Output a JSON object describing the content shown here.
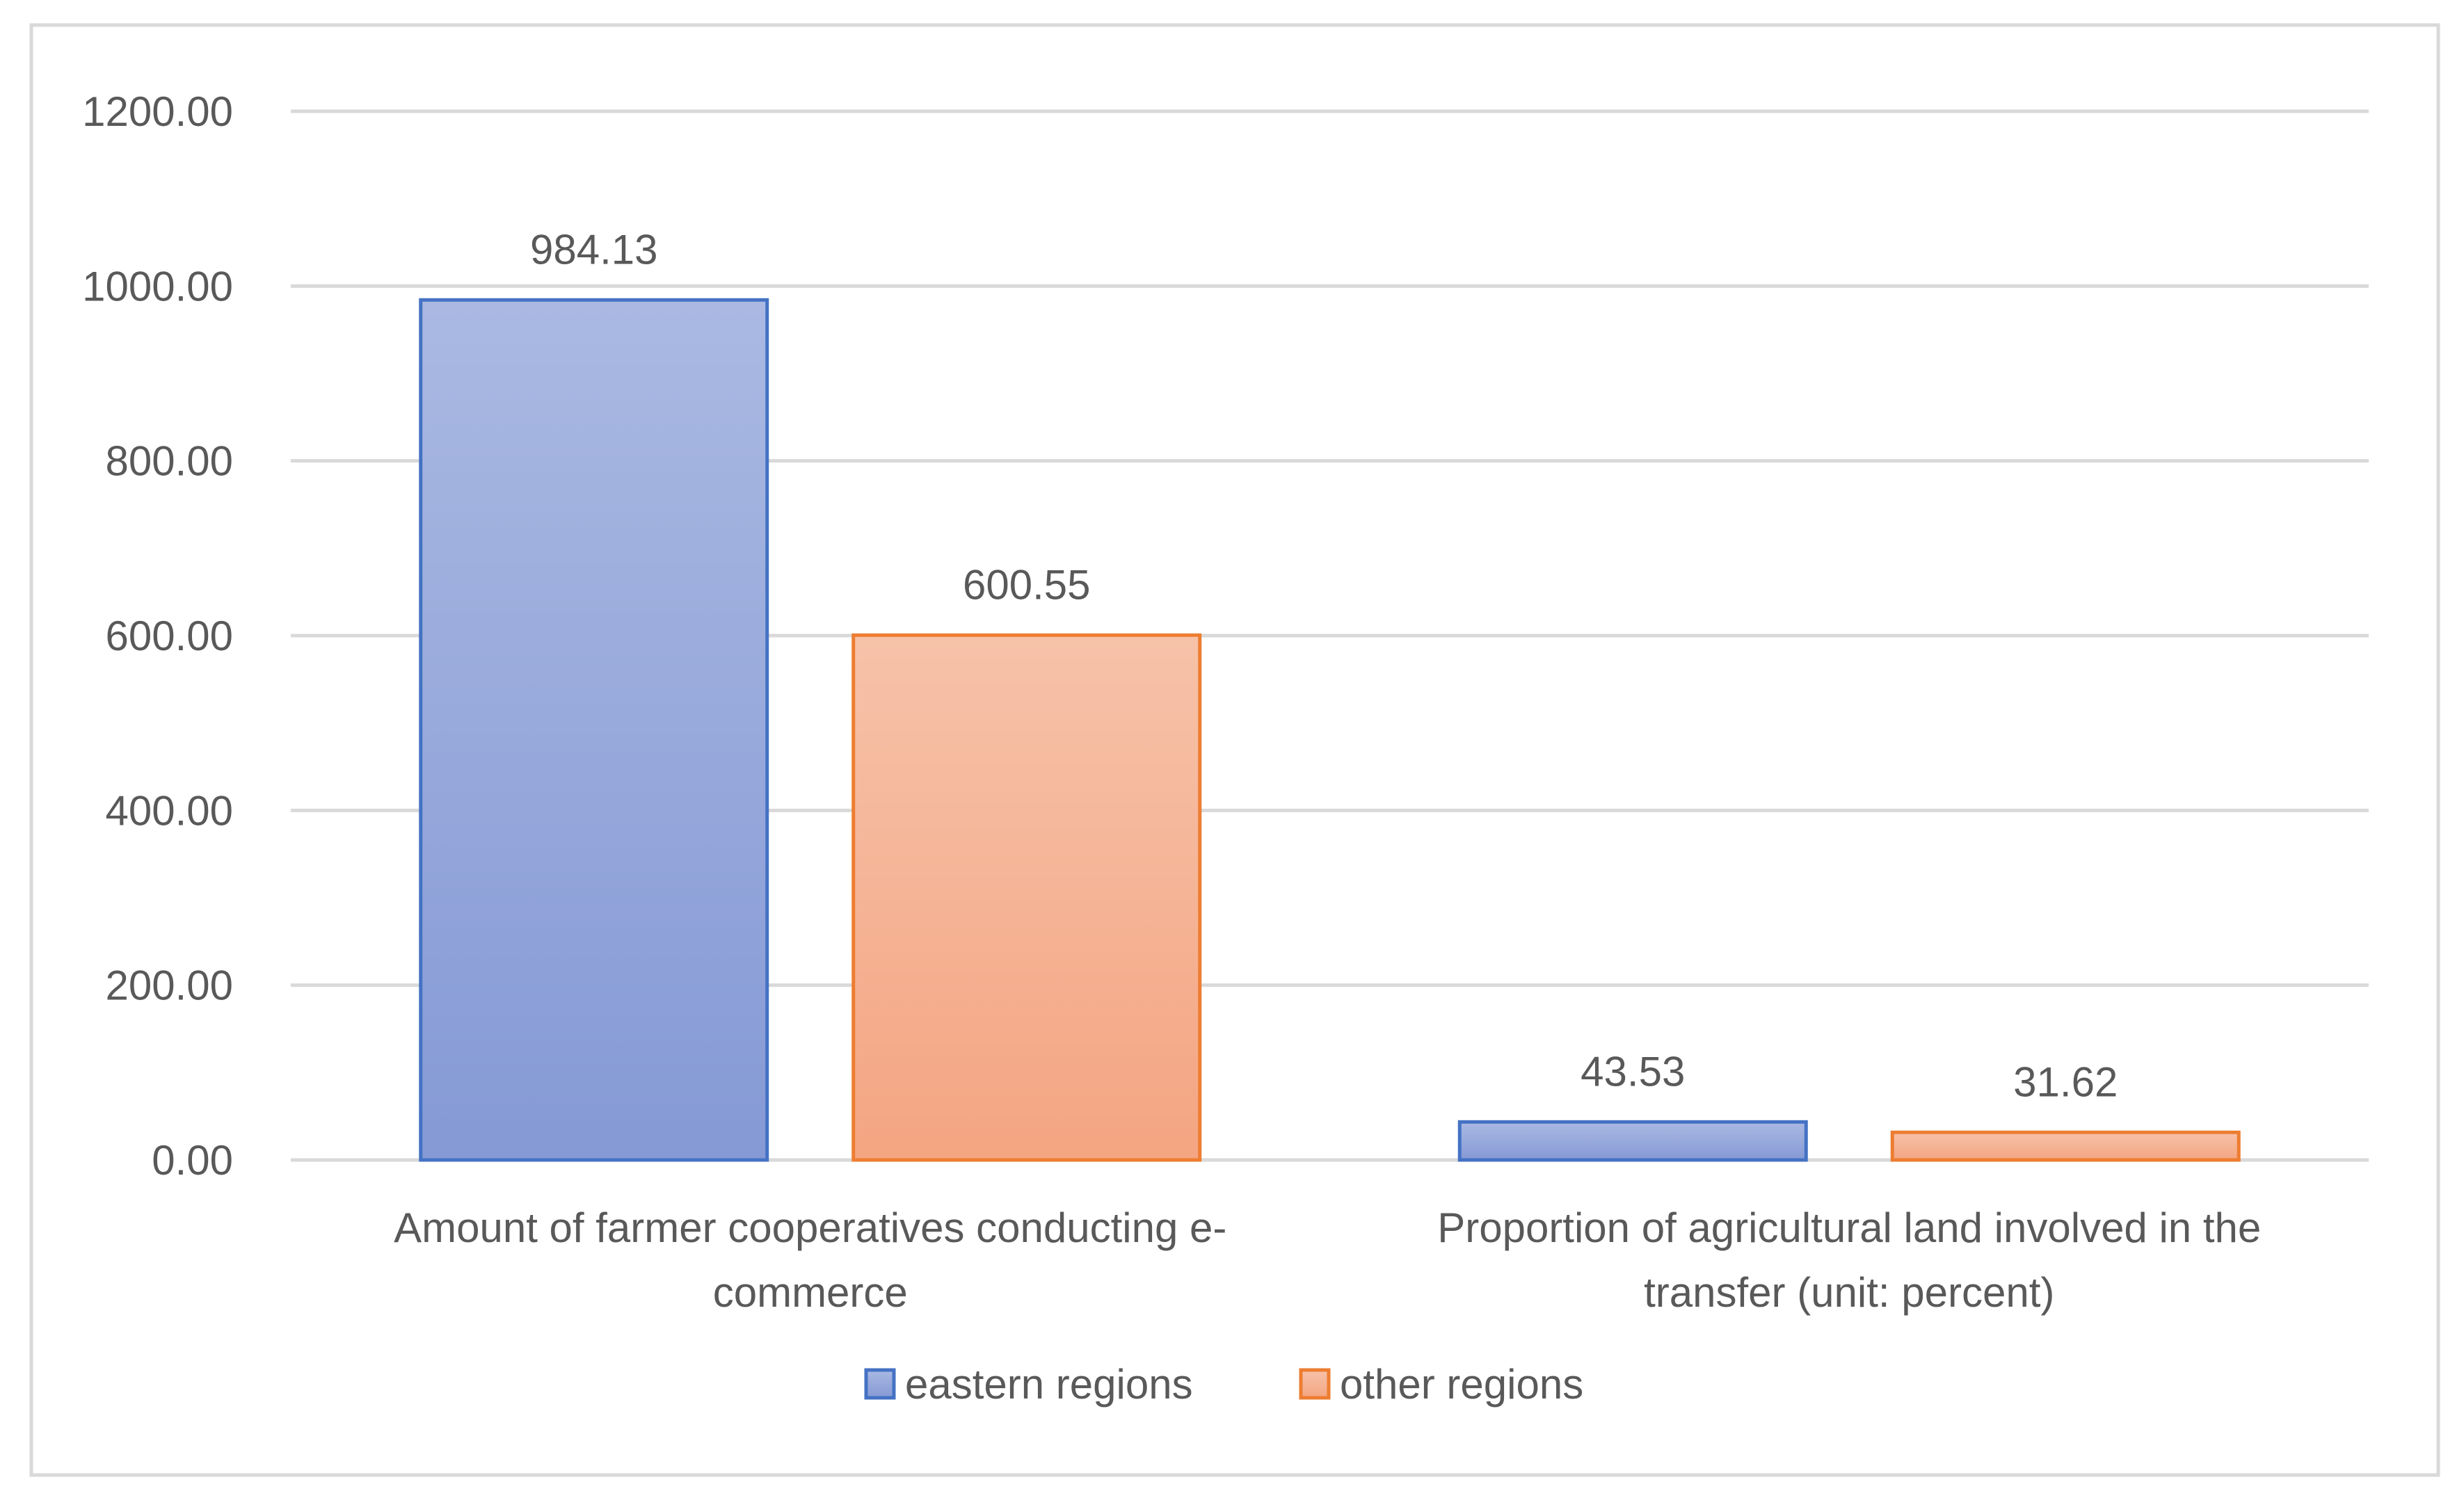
{
  "chart_data": {
    "type": "bar",
    "categories": [
      [
        "Amount of farmer cooperatives conducting e-",
        "commerce"
      ],
      [
        "Proportion of agricultural land involved in the",
        "transfer (unit: percent)"
      ]
    ],
    "series": [
      {
        "name": "eastern regions",
        "values": [
          984.13,
          43.53
        ],
        "labels": [
          "984.13",
          "43.53"
        ],
        "fill_top": "#aab9e2",
        "fill_bottom": "#8599d5",
        "stroke": "#4472c4"
      },
      {
        "name": "other regions",
        "values": [
          600.55,
          31.62
        ],
        "labels": [
          "600.55",
          "31.62"
        ],
        "fill_top": "#f6c2a9",
        "fill_bottom": "#f4a582",
        "stroke": "#ed7d31"
      }
    ],
    "y_ticks": [
      "0.00",
      "200.00",
      "400.00",
      "600.00",
      "800.00",
      "1000.00",
      "1200.00"
    ],
    "ylim": [
      0,
      1200
    ],
    "grid": true,
    "legend_position": "bottom",
    "gridline_color": "#d9d9d9",
    "frame_color": "#d9d9d9",
    "text_color": "#595959"
  }
}
